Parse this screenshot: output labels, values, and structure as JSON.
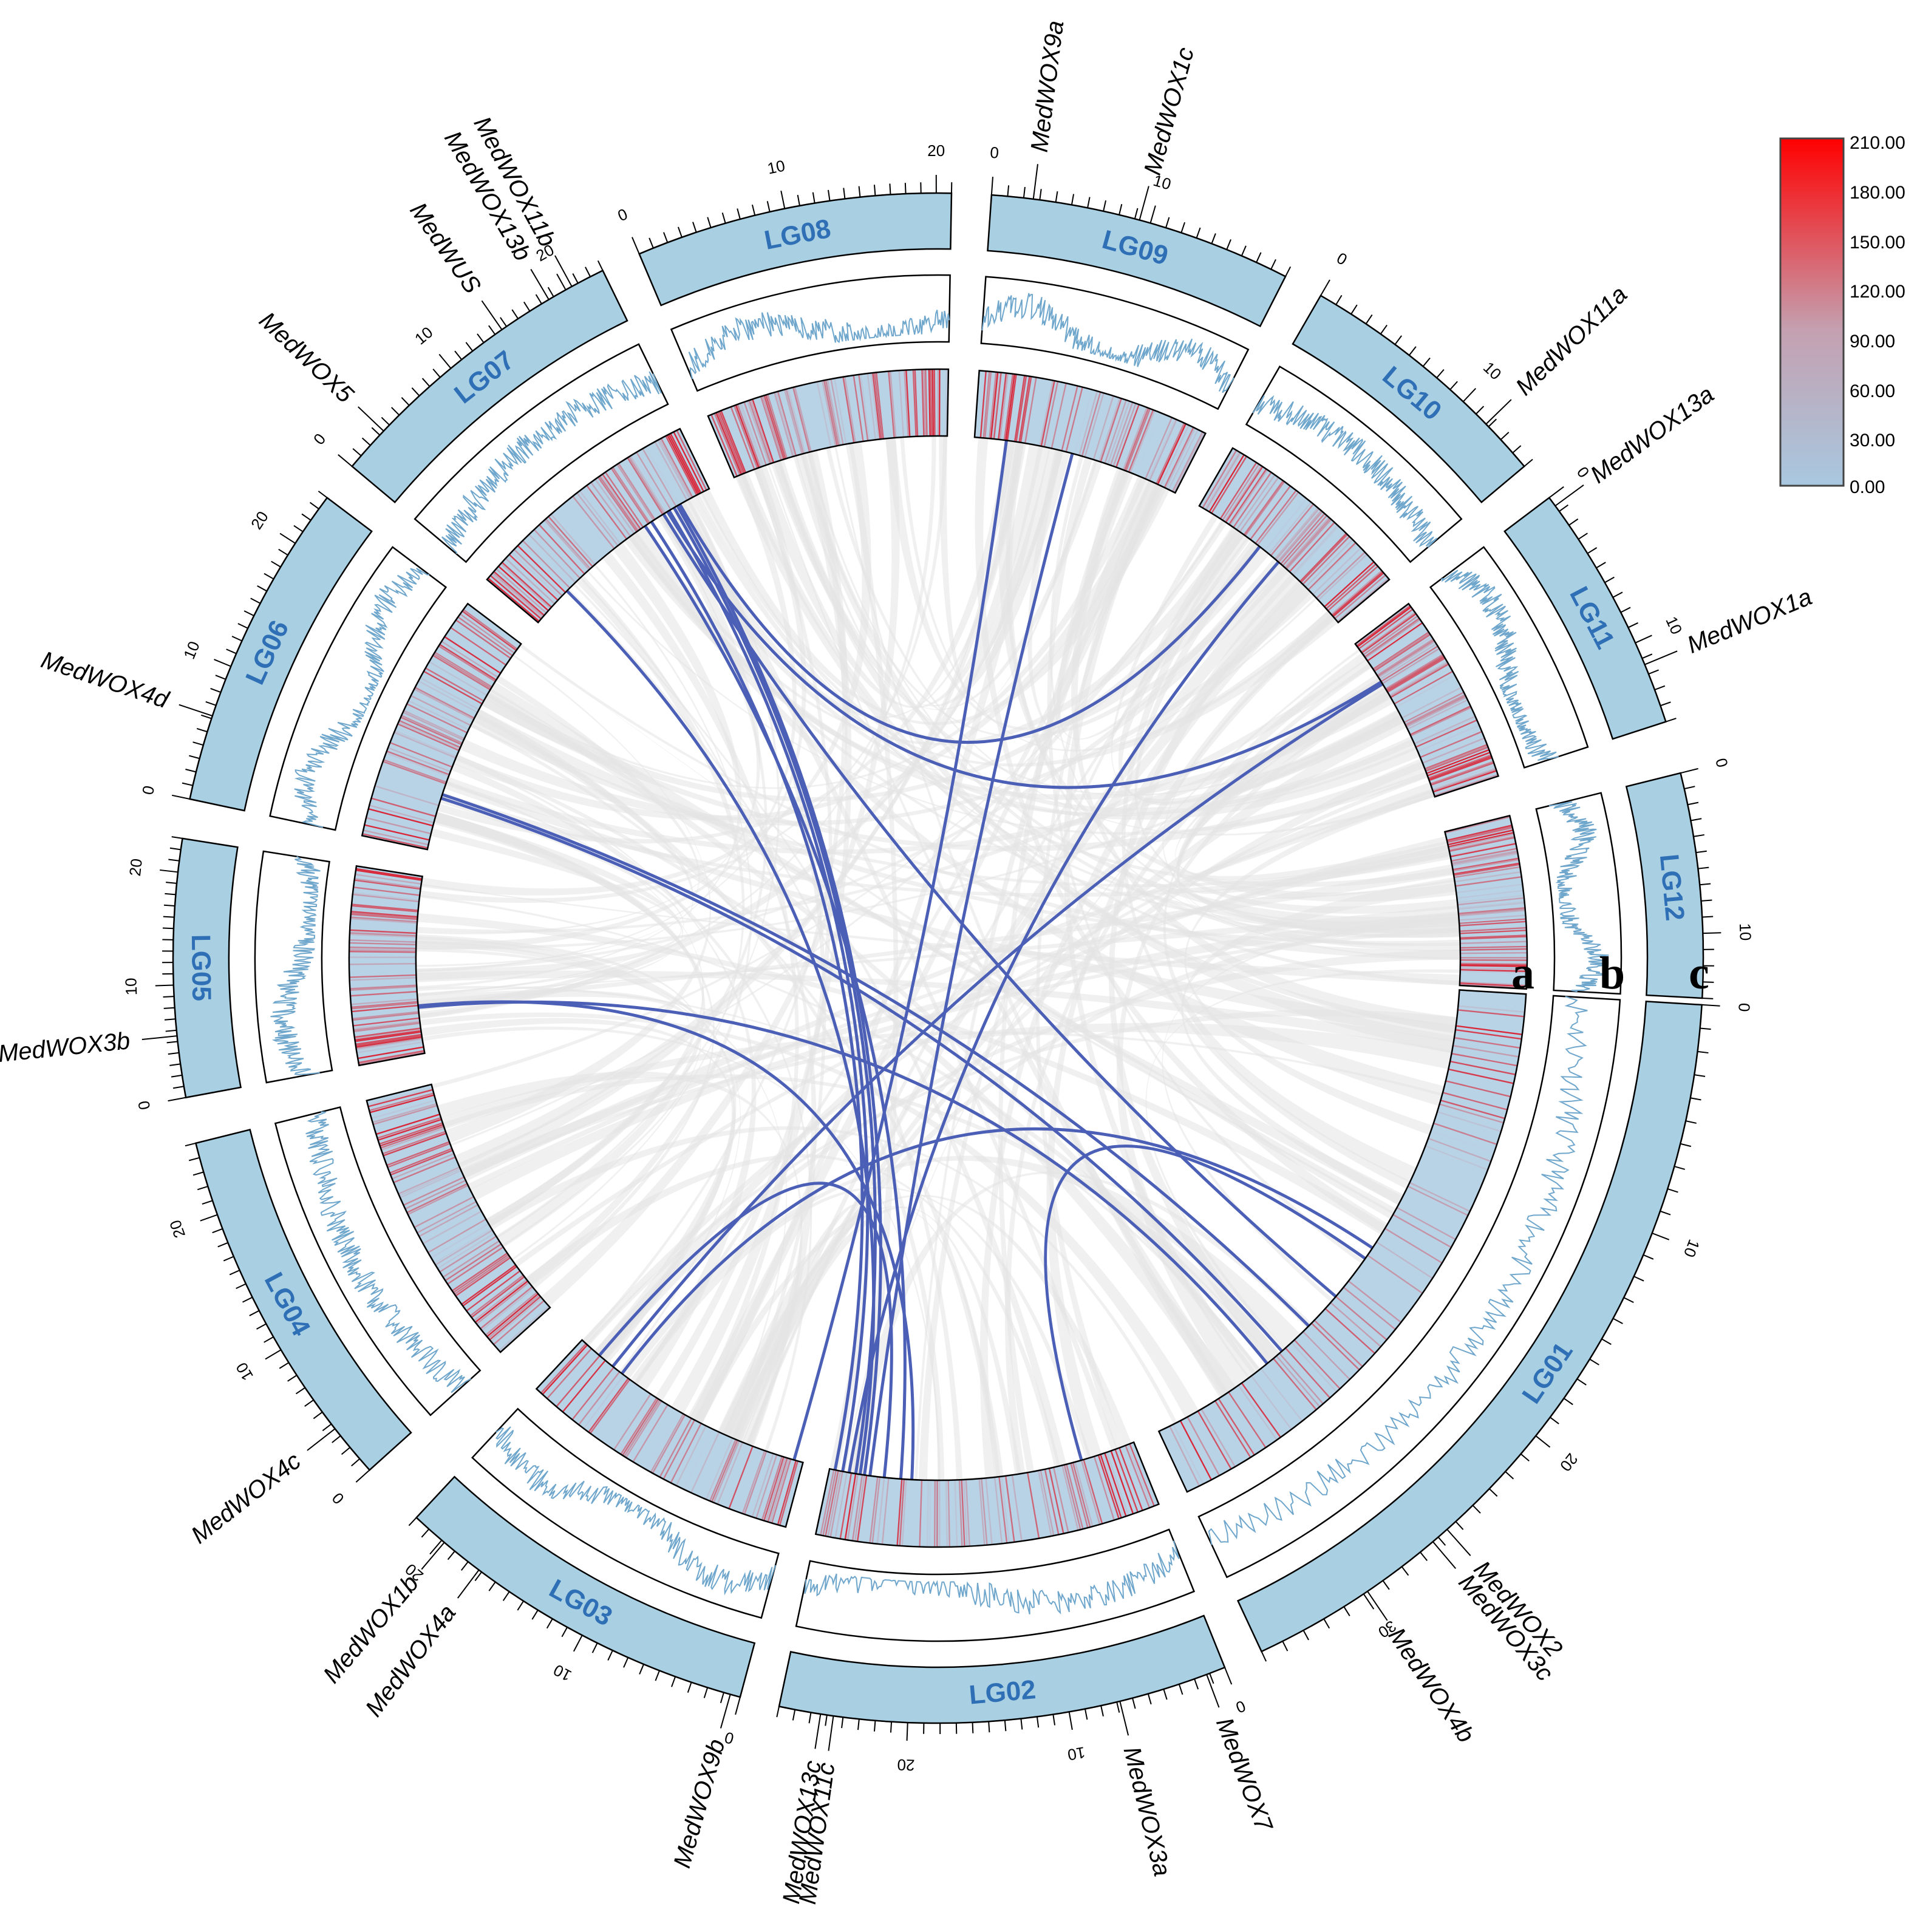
{
  "chromosomes": [
    {
      "name": "LG01",
      "length": 35
    },
    {
      "name": "LG02",
      "length": 28
    },
    {
      "name": "LG03",
      "length": 22
    },
    {
      "name": "LG04",
      "length": 25
    },
    {
      "name": "LG05",
      "length": 23
    },
    {
      "name": "LG06",
      "length": 24
    },
    {
      "name": "LG07",
      "length": 23
    },
    {
      "name": "LG08",
      "length": 21
    },
    {
      "name": "LG09",
      "length": 19
    },
    {
      "name": "LG10",
      "length": 15
    },
    {
      "name": "LG11",
      "length": 15
    },
    {
      "name": "LG12",
      "length": 14
    }
  ],
  "tick_labels": [
    "0",
    "10",
    "20",
    "30"
  ],
  "genes": [
    {
      "name": "MedWOX2",
      "chr": "LG01",
      "pos": 25.5
    },
    {
      "name": "MedWOX3c",
      "chr": "LG01",
      "pos": 26.3
    },
    {
      "name": "MedWOX4b",
      "chr": "LG01",
      "pos": 29.8
    },
    {
      "name": "MedWOX7",
      "chr": "LG02",
      "pos": 1.2
    },
    {
      "name": "MedWOX3a",
      "chr": "LG02",
      "pos": 6.8
    },
    {
      "name": "MedWOX11c",
      "chr": "LG02",
      "pos": 24.6
    },
    {
      "name": "MedWOX13c",
      "chr": "LG02",
      "pos": 25.4
    },
    {
      "name": "MedWOX9b",
      "chr": "LG03",
      "pos": 0.6
    },
    {
      "name": "MedWOX4a",
      "chr": "LG03",
      "pos": 17.2
    },
    {
      "name": "MedWOX1b",
      "chr": "LG03",
      "pos": 19.8
    },
    {
      "name": "MedWOX4c",
      "chr": "LG04",
      "pos": 3.6
    },
    {
      "name": "MedWOX3b",
      "chr": "LG05",
      "pos": 5.5
    },
    {
      "name": "MedWOX4d",
      "chr": "LG06",
      "pos": 6.2
    },
    {
      "name": "MedWOX5",
      "chr": "LG07",
      "pos": 3.4
    },
    {
      "name": "MedWUS",
      "chr": "LG07",
      "pos": 14.6
    },
    {
      "name": "MedWOX13b",
      "chr": "LG07",
      "pos": 18.6
    },
    {
      "name": "MedWOX11b",
      "chr": "LG07",
      "pos": 20.5
    },
    {
      "name": "MedWOX9a",
      "chr": "LG09",
      "pos": 2.6
    },
    {
      "name": "MedWOX1c",
      "chr": "LG09",
      "pos": 9.3
    },
    {
      "name": "MedWOX11a",
      "chr": "LG10",
      "pos": 11.8
    },
    {
      "name": "MedWOX13a",
      "chr": "LG11",
      "pos": 0.6
    },
    {
      "name": "MedWOX1a",
      "chr": "LG11",
      "pos": 11.4
    }
  ],
  "ring_letters": [
    "a",
    "b",
    "c"
  ],
  "legend": {
    "labels": [
      "210.00",
      "180.00",
      "150.00",
      "120.00",
      "90.00",
      "60.00",
      "30.00",
      "0.00"
    ],
    "color_low": "#a8c8e0",
    "color_mid": "#c4a0b0",
    "color_high": "#ff0000"
  },
  "colors": {
    "chromosome_fill": "#a8cfe2",
    "line_track": "#6fa6cc",
    "link_gray": "#e3e3e3",
    "link_blue": "#4a5fb5",
    "heat_low": "#b9d3e6",
    "heat_high": "#d8283a"
  },
  "links": [
    [
      "LG07",
      17.5,
      "LG01",
      21.0
    ],
    [
      "LG07",
      18.2,
      "LG02",
      26.8
    ],
    [
      "LG07",
      18.8,
      "LG02",
      25.6
    ],
    [
      "LG07",
      19.2,
      "LG02",
      24.8
    ],
    [
      "LG07",
      16.0,
      "LG02",
      27.5
    ],
    [
      "LG07",
      15.2,
      "LG02",
      21.5
    ],
    [
      "LG07",
      19.5,
      "LG10",
      6.0
    ],
    [
      "LG07",
      18.0,
      "LG11",
      4.0
    ],
    [
      "LG07",
      4.5,
      "LG02",
      25.2
    ],
    [
      "LG09",
      2.9,
      "LG03",
      0.8
    ],
    [
      "LG09",
      9.0,
      "LG02",
      24.3
    ],
    [
      "LG10",
      8.0,
      "LG02",
      26.2
    ],
    [
      "LG11",
      4.2,
      "LG03",
      18.5
    ],
    [
      "LG06",
      6.0,
      "LG01",
      23.5
    ],
    [
      "LG06",
      5.6,
      "LG01",
      25.8
    ],
    [
      "LG05",
      6.2,
      "LG02",
      20.5
    ],
    [
      "LG05",
      6.0,
      "LG01",
      27.0
    ],
    [
      "LG02",
      5.0,
      "LG01",
      18.0
    ],
    [
      "LG03",
      17.5,
      "LG01",
      17.2
    ],
    [
      "LG03",
      20.0,
      "LG02",
      23.0
    ]
  ]
}
